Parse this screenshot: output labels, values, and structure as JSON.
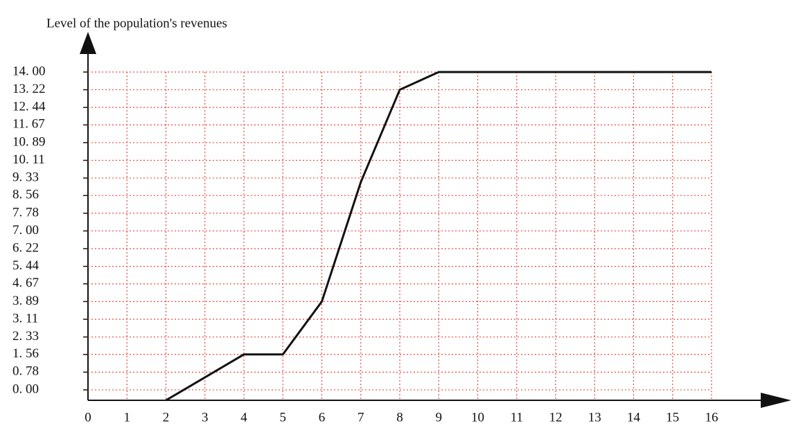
{
  "chart_data": {
    "type": "line",
    "y_label": "Level of the population's revenues",
    "x": [
      2,
      4,
      5,
      6,
      7,
      8,
      9,
      16
    ],
    "values": [
      -0.46,
      1.56,
      1.56,
      3.89,
      9.15,
      13.22,
      14.0,
      14.0
    ],
    "color": "#111111",
    "grid": true,
    "grid_color": "#e8483a",
    "xlim": [
      0,
      16
    ],
    "xticks": [
      0,
      1,
      2,
      3,
      4,
      5,
      6,
      7,
      8,
      9,
      10,
      11,
      12,
      13,
      14,
      15,
      16
    ],
    "ylim": [
      -0.46,
      14.0
    ],
    "yticks": [
      {
        "value": 0,
        "label": "0. 00"
      },
      {
        "value": 0.78,
        "label": "0. 78"
      },
      {
        "value": 1.56,
        "label": "1. 56"
      },
      {
        "value": 2.33,
        "label": "2. 33"
      },
      {
        "value": 3.11,
        "label": "3. 11"
      },
      {
        "value": 3.89,
        "label": "3. 89"
      },
      {
        "value": 4.67,
        "label": "4. 67"
      },
      {
        "value": 5.44,
        "label": "5. 44"
      },
      {
        "value": 6.22,
        "label": "6. 22"
      },
      {
        "value": 7.0,
        "label": "7. 00"
      },
      {
        "value": 7.78,
        "label": "7. 78"
      },
      {
        "value": 8.56,
        "label": "8. 56"
      },
      {
        "value": 9.33,
        "label": "9. 33"
      },
      {
        "value": 10.11,
        "label": "10. 11"
      },
      {
        "value": 10.89,
        "label": "10. 89"
      },
      {
        "value": 11.67,
        "label": "11. 67"
      },
      {
        "value": 12.44,
        "label": "12. 44"
      },
      {
        "value": 13.22,
        "label": "13. 22"
      },
      {
        "value": 14.0,
        "label": "14. 00"
      }
    ]
  }
}
